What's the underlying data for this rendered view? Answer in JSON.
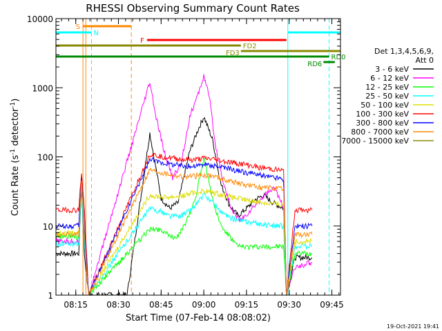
{
  "chart_data": {
    "type": "line",
    "title": "RHESSI Observing Summary Count Rates",
    "xlabel": "Start Time (07-Feb-14 08:08:02)",
    "ylabel_main": "Count Rate (s",
    "ylabel_sup": "-1",
    "ylabel_mid": " detector",
    "ylabel_sup2": "-1",
    "ylabel_end": ")",
    "timestamp": "19-Oct-2021 19:41",
    "xlim_minutes": [
      0,
      100
    ],
    "ylim": [
      1,
      10000
    ],
    "yscale": "log",
    "x_ticks": [
      {
        "label": "08:15",
        "min": 6.97
      },
      {
        "label": "08:30",
        "min": 21.97
      },
      {
        "label": "08:45",
        "min": 36.97
      },
      {
        "label": "09:00",
        "min": 51.97
      },
      {
        "label": "09:15",
        "min": 66.97
      },
      {
        "label": "09:30",
        "min": 81.97
      },
      {
        "label": "09:45",
        "min": 96.97
      }
    ],
    "y_ticks": [
      {
        "label": "1",
        "v": 1
      },
      {
        "label": "10",
        "v": 10
      },
      {
        "label": "100",
        "v": 100
      },
      {
        "label": "1000",
        "v": 1000
      },
      {
        "label": "10000",
        "v": 10000
      }
    ],
    "legend": {
      "header1": "Det 1,3,4,5,6,9,",
      "header2": "Att 0",
      "position": "right"
    },
    "series": [
      {
        "name": "3 - 6 keV",
        "color": "#000000",
        "points": [
          [
            0,
            4
          ],
          [
            8,
            4
          ],
          [
            9,
            40
          ],
          [
            10,
            4
          ],
          [
            11.5,
            1
          ],
          [
            25,
            1
          ],
          [
            33,
            220
          ],
          [
            37,
            25
          ],
          [
            40,
            18
          ],
          [
            43,
            22
          ],
          [
            47,
            120
          ],
          [
            50,
            250
          ],
          [
            52,
            380
          ],
          [
            55,
            180
          ],
          [
            58,
            40
          ],
          [
            61,
            20
          ],
          [
            64,
            14
          ],
          [
            67,
            18
          ],
          [
            70,
            24
          ],
          [
            73,
            28
          ],
          [
            76,
            22
          ],
          [
            80,
            18
          ],
          [
            81,
            1
          ],
          [
            84,
            3.5
          ],
          [
            90,
            3.5
          ]
        ]
      },
      {
        "name": "6 - 12 keV",
        "color": "#ff00ff",
        "points": [
          [
            0,
            6
          ],
          [
            8,
            6
          ],
          [
            9,
            50
          ],
          [
            10,
            6
          ],
          [
            11.5,
            1
          ],
          [
            33,
            1200
          ],
          [
            35,
            400
          ],
          [
            38,
            120
          ],
          [
            41,
            50
          ],
          [
            44,
            80
          ],
          [
            47,
            380
          ],
          [
            50,
            800
          ],
          [
            52,
            1500
          ],
          [
            54,
            700
          ],
          [
            56,
            150
          ],
          [
            59,
            40
          ],
          [
            62,
            16
          ],
          [
            65,
            12
          ],
          [
            68,
            16
          ],
          [
            71,
            22
          ],
          [
            74,
            30
          ],
          [
            77,
            35
          ],
          [
            80,
            18
          ],
          [
            81,
            1
          ],
          [
            84,
            2.5
          ],
          [
            90,
            3
          ]
        ]
      },
      {
        "name": "12 - 25 keV",
        "color": "#00ff00",
        "points": [
          [
            0,
            7
          ],
          [
            8,
            7
          ],
          [
            9,
            50
          ],
          [
            10,
            7
          ],
          [
            11.5,
            1
          ],
          [
            33,
            9
          ],
          [
            37,
            9
          ],
          [
            40,
            7
          ],
          [
            43,
            7
          ],
          [
            46,
            12
          ],
          [
            49,
            25
          ],
          [
            52,
            100
          ],
          [
            55,
            25
          ],
          [
            58,
            10
          ],
          [
            61,
            7
          ],
          [
            64,
            5
          ],
          [
            70,
            5
          ],
          [
            76,
            5
          ],
          [
            80,
            5
          ],
          [
            81,
            1
          ],
          [
            84,
            4
          ],
          [
            90,
            4
          ]
        ]
      },
      {
        "name": "25 - 50 keV",
        "color": "#00ffff",
        "points": [
          [
            0,
            5.5
          ],
          [
            8,
            5.5
          ],
          [
            9,
            40
          ],
          [
            10,
            5.5
          ],
          [
            11.5,
            1
          ],
          [
            33,
            18
          ],
          [
            37,
            16
          ],
          [
            40,
            14
          ],
          [
            44,
            14
          ],
          [
            48,
            18
          ],
          [
            52,
            28
          ],
          [
            55,
            22
          ],
          [
            58,
            16
          ],
          [
            61,
            13
          ],
          [
            65,
            12
          ],
          [
            70,
            11
          ],
          [
            76,
            10
          ],
          [
            80,
            10
          ],
          [
            81,
            1
          ],
          [
            84,
            5
          ],
          [
            90,
            5
          ]
        ]
      },
      {
        "name": "50 - 100 keV",
        "color": "#dddd00",
        "points": [
          [
            0,
            8
          ],
          [
            8,
            8
          ],
          [
            9,
            55
          ],
          [
            10,
            8
          ],
          [
            11.5,
            1
          ],
          [
            33,
            28
          ],
          [
            38,
            26
          ],
          [
            44,
            27
          ],
          [
            48,
            30
          ],
          [
            52,
            32
          ],
          [
            56,
            30
          ],
          [
            60,
            27
          ],
          [
            66,
            24
          ],
          [
            72,
            22
          ],
          [
            80,
            20
          ],
          [
            81,
            1
          ],
          [
            84,
            6
          ],
          [
            90,
            6
          ]
        ]
      },
      {
        "name": "100 - 300 keV",
        "color": "#ff0000",
        "points": [
          [
            0,
            17
          ],
          [
            8,
            17
          ],
          [
            9,
            60
          ],
          [
            10,
            17
          ],
          [
            11.5,
            1
          ],
          [
            33,
            110
          ],
          [
            38,
            100
          ],
          [
            44,
            92
          ],
          [
            48,
            90
          ],
          [
            52,
            95
          ],
          [
            56,
            92
          ],
          [
            60,
            85
          ],
          [
            66,
            78
          ],
          [
            72,
            70
          ],
          [
            80,
            63
          ],
          [
            81,
            1
          ],
          [
            84,
            17
          ],
          [
            90,
            17
          ]
        ]
      },
      {
        "name": "300 - 800 keV",
        "color": "#0000ff",
        "points": [
          [
            0,
            10
          ],
          [
            8,
            10
          ],
          [
            9,
            50
          ],
          [
            10,
            10
          ],
          [
            11.5,
            1
          ],
          [
            33,
            90
          ],
          [
            38,
            82
          ],
          [
            44,
            75
          ],
          [
            48,
            73
          ],
          [
            52,
            78
          ],
          [
            56,
            74
          ],
          [
            60,
            68
          ],
          [
            66,
            60
          ],
          [
            72,
            54
          ],
          [
            80,
            48
          ],
          [
            81,
            1
          ],
          [
            84,
            10
          ],
          [
            90,
            10
          ]
        ]
      },
      {
        "name": "800 - 7000 keV",
        "color": "#ff8800",
        "points": [
          [
            0,
            7.5
          ],
          [
            8,
            7.5
          ],
          [
            9,
            45
          ],
          [
            10,
            7.5
          ],
          [
            11.5,
            1
          ],
          [
            33,
            65
          ],
          [
            38,
            58
          ],
          [
            44,
            52
          ],
          [
            48,
            52
          ],
          [
            52,
            55
          ],
          [
            56,
            52
          ],
          [
            60,
            46
          ],
          [
            66,
            40
          ],
          [
            72,
            36
          ],
          [
            80,
            34
          ],
          [
            81,
            1
          ],
          [
            84,
            7.5
          ],
          [
            90,
            7.5
          ]
        ]
      },
      {
        "name": "7000 - 15000 keV",
        "color": "#888800",
        "points": []
      }
    ],
    "flag_bars": [
      {
        "label": "S",
        "color": "#ff8800",
        "x0": 9.5,
        "x1": 26.5,
        "y": 38,
        "label_side": "left"
      },
      {
        "label": "N",
        "color": "#00ffff",
        "x0": 0,
        "x1": 12.5,
        "y": 47,
        "label_side": "right"
      },
      {
        "label": "N",
        "color": "#00ffff",
        "x0": 81.5,
        "x1": 100,
        "y": 47,
        "label_side": "none"
      },
      {
        "label": "F",
        "color": "#ff0000",
        "x0": 32,
        "x1": 81,
        "y": 58,
        "label_side": "left"
      },
      {
        "label": "FD2",
        "color": "#888800",
        "x0": 0,
        "x1": 65,
        "y": 66,
        "label_side": "right"
      },
      {
        "label": "FD3",
        "color": "#888800",
        "x0": 65,
        "x1": 100,
        "y": 74,
        "label_side": "leftabove"
      },
      {
        "label": "RD0",
        "color": "#008800",
        "x0": 0,
        "x1": 96,
        "y": 82,
        "label_side": "right"
      },
      {
        "label": "RD6",
        "color": "#008800",
        "x0": 94,
        "x1": 98,
        "y": 90,
        "label_side": "leftabove"
      }
    ],
    "vlines": [
      {
        "min": 0,
        "color": "#00ffff",
        "dash": false
      },
      {
        "min": 9.5,
        "color": "#ff8800",
        "dash": false
      },
      {
        "min": 10.5,
        "color": "#ff8800",
        "dash": false
      },
      {
        "min": 12.5,
        "color": "#00ffff",
        "dash": true
      },
      {
        "min": 26.5,
        "color": "#ff8800",
        "dash": true
      },
      {
        "min": 81.5,
        "color": "#00ffff",
        "dash": false
      },
      {
        "min": 96,
        "color": "#00ffff",
        "dash": true
      }
    ]
  }
}
